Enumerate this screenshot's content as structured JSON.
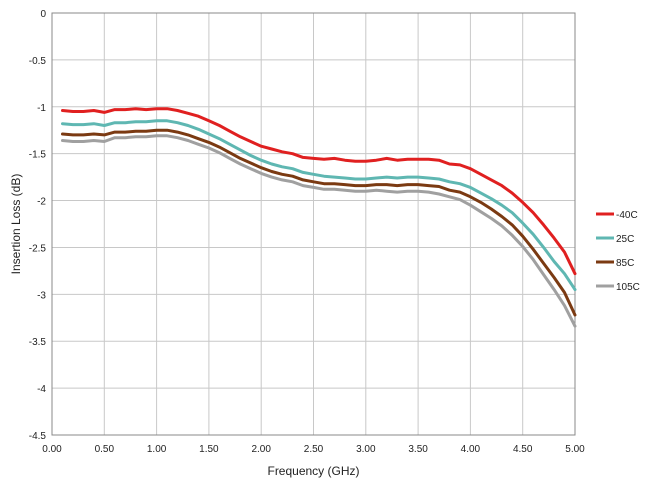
{
  "chart_data": {
    "type": "line",
    "title": "",
    "xlabel": "Frequency (GHz)",
    "ylabel": "Insertion Loss (dB)",
    "xlim": [
      0,
      5
    ],
    "ylim": [
      -4.5,
      0
    ],
    "x_ticks": [
      "0.00",
      "0.50",
      "1.00",
      "1.50",
      "2.00",
      "2.50",
      "3.00",
      "3.50",
      "4.00",
      "4.50",
      "5.00"
    ],
    "y_ticks": [
      "0",
      "-0.5",
      "-1",
      "-1.5",
      "-2",
      "-2.5",
      "-3",
      "-3.5",
      "-4",
      "-4.5"
    ],
    "grid": true,
    "legend_position": "right",
    "x": [
      0.1,
      0.2,
      0.3,
      0.4,
      0.5,
      0.6,
      0.7,
      0.8,
      0.9,
      1.0,
      1.1,
      1.2,
      1.3,
      1.4,
      1.5,
      1.6,
      1.7,
      1.8,
      1.9,
      2.0,
      2.1,
      2.2,
      2.3,
      2.4,
      2.5,
      2.6,
      2.7,
      2.8,
      2.9,
      3.0,
      3.1,
      3.2,
      3.3,
      3.4,
      3.5,
      3.6,
      3.7,
      3.8,
      3.9,
      4.0,
      4.1,
      4.2,
      4.3,
      4.4,
      4.5,
      4.6,
      4.7,
      4.8,
      4.9,
      5.0
    ],
    "series": [
      {
        "name": "-40C",
        "color": "#e02020",
        "values": [
          -1.04,
          -1.05,
          -1.05,
          -1.04,
          -1.06,
          -1.03,
          -1.03,
          -1.02,
          -1.03,
          -1.02,
          -1.02,
          -1.04,
          -1.07,
          -1.1,
          -1.15,
          -1.2,
          -1.26,
          -1.32,
          -1.37,
          -1.42,
          -1.45,
          -1.48,
          -1.5,
          -1.54,
          -1.55,
          -1.56,
          -1.55,
          -1.57,
          -1.58,
          -1.58,
          -1.57,
          -1.55,
          -1.57,
          -1.56,
          -1.56,
          -1.56,
          -1.57,
          -1.61,
          -1.62,
          -1.66,
          -1.72,
          -1.78,
          -1.84,
          -1.92,
          -2.02,
          -2.13,
          -2.26,
          -2.4,
          -2.55,
          -2.78
        ]
      },
      {
        "name": "25C",
        "color": "#5fb7b2",
        "values": [
          -1.18,
          -1.19,
          -1.19,
          -1.18,
          -1.2,
          -1.17,
          -1.17,
          -1.16,
          -1.16,
          -1.15,
          -1.15,
          -1.17,
          -1.2,
          -1.24,
          -1.29,
          -1.34,
          -1.4,
          -1.46,
          -1.52,
          -1.57,
          -1.61,
          -1.64,
          -1.66,
          -1.7,
          -1.72,
          -1.74,
          -1.75,
          -1.76,
          -1.77,
          -1.77,
          -1.76,
          -1.75,
          -1.76,
          -1.75,
          -1.75,
          -1.76,
          -1.77,
          -1.8,
          -1.82,
          -1.86,
          -1.92,
          -1.98,
          -2.05,
          -2.13,
          -2.24,
          -2.36,
          -2.5,
          -2.65,
          -2.78,
          -2.95
        ]
      },
      {
        "name": "85C",
        "color": "#7b3a12",
        "values": [
          -1.29,
          -1.3,
          -1.3,
          -1.29,
          -1.3,
          -1.27,
          -1.27,
          -1.26,
          -1.26,
          -1.25,
          -1.25,
          -1.27,
          -1.3,
          -1.34,
          -1.38,
          -1.43,
          -1.49,
          -1.55,
          -1.6,
          -1.65,
          -1.69,
          -1.72,
          -1.74,
          -1.78,
          -1.8,
          -1.82,
          -1.82,
          -1.83,
          -1.84,
          -1.84,
          -1.83,
          -1.83,
          -1.84,
          -1.83,
          -1.83,
          -1.84,
          -1.85,
          -1.89,
          -1.91,
          -1.96,
          -2.02,
          -2.09,
          -2.17,
          -2.26,
          -2.38,
          -2.52,
          -2.67,
          -2.82,
          -2.98,
          -3.22
        ]
      },
      {
        "name": "105C",
        "color": "#a0a0a0",
        "values": [
          -1.36,
          -1.37,
          -1.37,
          -1.36,
          -1.37,
          -1.33,
          -1.33,
          -1.32,
          -1.32,
          -1.31,
          -1.31,
          -1.33,
          -1.36,
          -1.4,
          -1.44,
          -1.49,
          -1.55,
          -1.61,
          -1.66,
          -1.71,
          -1.75,
          -1.78,
          -1.8,
          -1.84,
          -1.86,
          -1.88,
          -1.88,
          -1.89,
          -1.9,
          -1.9,
          -1.89,
          -1.9,
          -1.91,
          -1.9,
          -1.9,
          -1.91,
          -1.93,
          -1.96,
          -1.99,
          -2.05,
          -2.12,
          -2.19,
          -2.27,
          -2.37,
          -2.49,
          -2.63,
          -2.79,
          -2.95,
          -3.12,
          -3.34
        ]
      }
    ]
  }
}
